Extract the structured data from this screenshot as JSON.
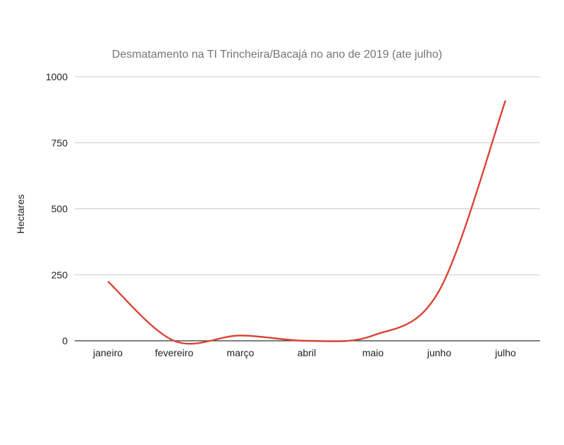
{
  "chart_data": {
    "type": "line",
    "title": "Desmatamento na TI Trincheira/Bacajá no ano de 2019 (ate julho)",
    "xlabel": "",
    "ylabel": "Hectares",
    "categories": [
      "janeiro",
      "fevereiro",
      "março",
      "abril",
      "maio",
      "junho",
      "julho"
    ],
    "series": [
      {
        "values": [
          225,
          0,
          20,
          0,
          20,
          190,
          910
        ]
      }
    ],
    "ylim": [
      0,
      1000
    ],
    "yticks": [
      "0",
      "250",
      "500",
      "750",
      "1000"
    ],
    "grid": true,
    "legend": "none",
    "color": "#db4437"
  }
}
